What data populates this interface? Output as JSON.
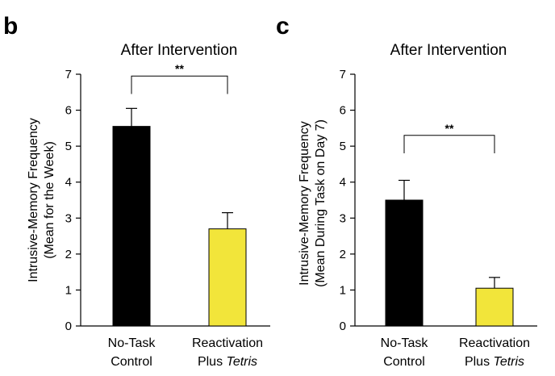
{
  "chart_data": [
    {
      "panel": "b",
      "type": "bar",
      "title": "After Intervention",
      "ylabel_lines": [
        "Intrusive-Memory Frequency",
        "(Mean for the Week)"
      ],
      "ylim": [
        0,
        7
      ],
      "yticks": [
        "0",
        "1",
        "2",
        "3",
        "4",
        "5",
        "6",
        "7"
      ],
      "categories": [
        {
          "line1": "No-Task",
          "line2a": "Control",
          "line2b": ""
        },
        {
          "line1": "Reactivation",
          "line2a": "Plus ",
          "line2b": "Tetris"
        }
      ],
      "values": [
        5.55,
        2.7
      ],
      "errors": [
        0.5,
        0.45
      ],
      "colors": [
        "#000000",
        "#f2e53a"
      ],
      "significance": {
        "label": "**",
        "bracket_y": 6.95,
        "drop_to": [
          6.45,
          6.45
        ]
      }
    },
    {
      "panel": "c",
      "type": "bar",
      "title": "After Intervention",
      "ylabel_lines": [
        "Intrusive-Memory Frequency",
        "(Mean During Task on Day 7)"
      ],
      "ylim": [
        0,
        7
      ],
      "yticks": [
        "0",
        "1",
        "2",
        "3",
        "4",
        "5",
        "6",
        "7"
      ],
      "categories": [
        {
          "line1": "No-Task",
          "line2a": "Control",
          "line2b": ""
        },
        {
          "line1": "Reactivation",
          "line2a": "Plus ",
          "line2b": "Tetris"
        }
      ],
      "values": [
        3.5,
        1.05
      ],
      "errors": [
        0.55,
        0.3
      ],
      "colors": [
        "#000000",
        "#f2e53a"
      ],
      "significance": {
        "label": "**",
        "bracket_y": 5.3,
        "drop_to": [
          4.8,
          4.8
        ]
      }
    }
  ]
}
